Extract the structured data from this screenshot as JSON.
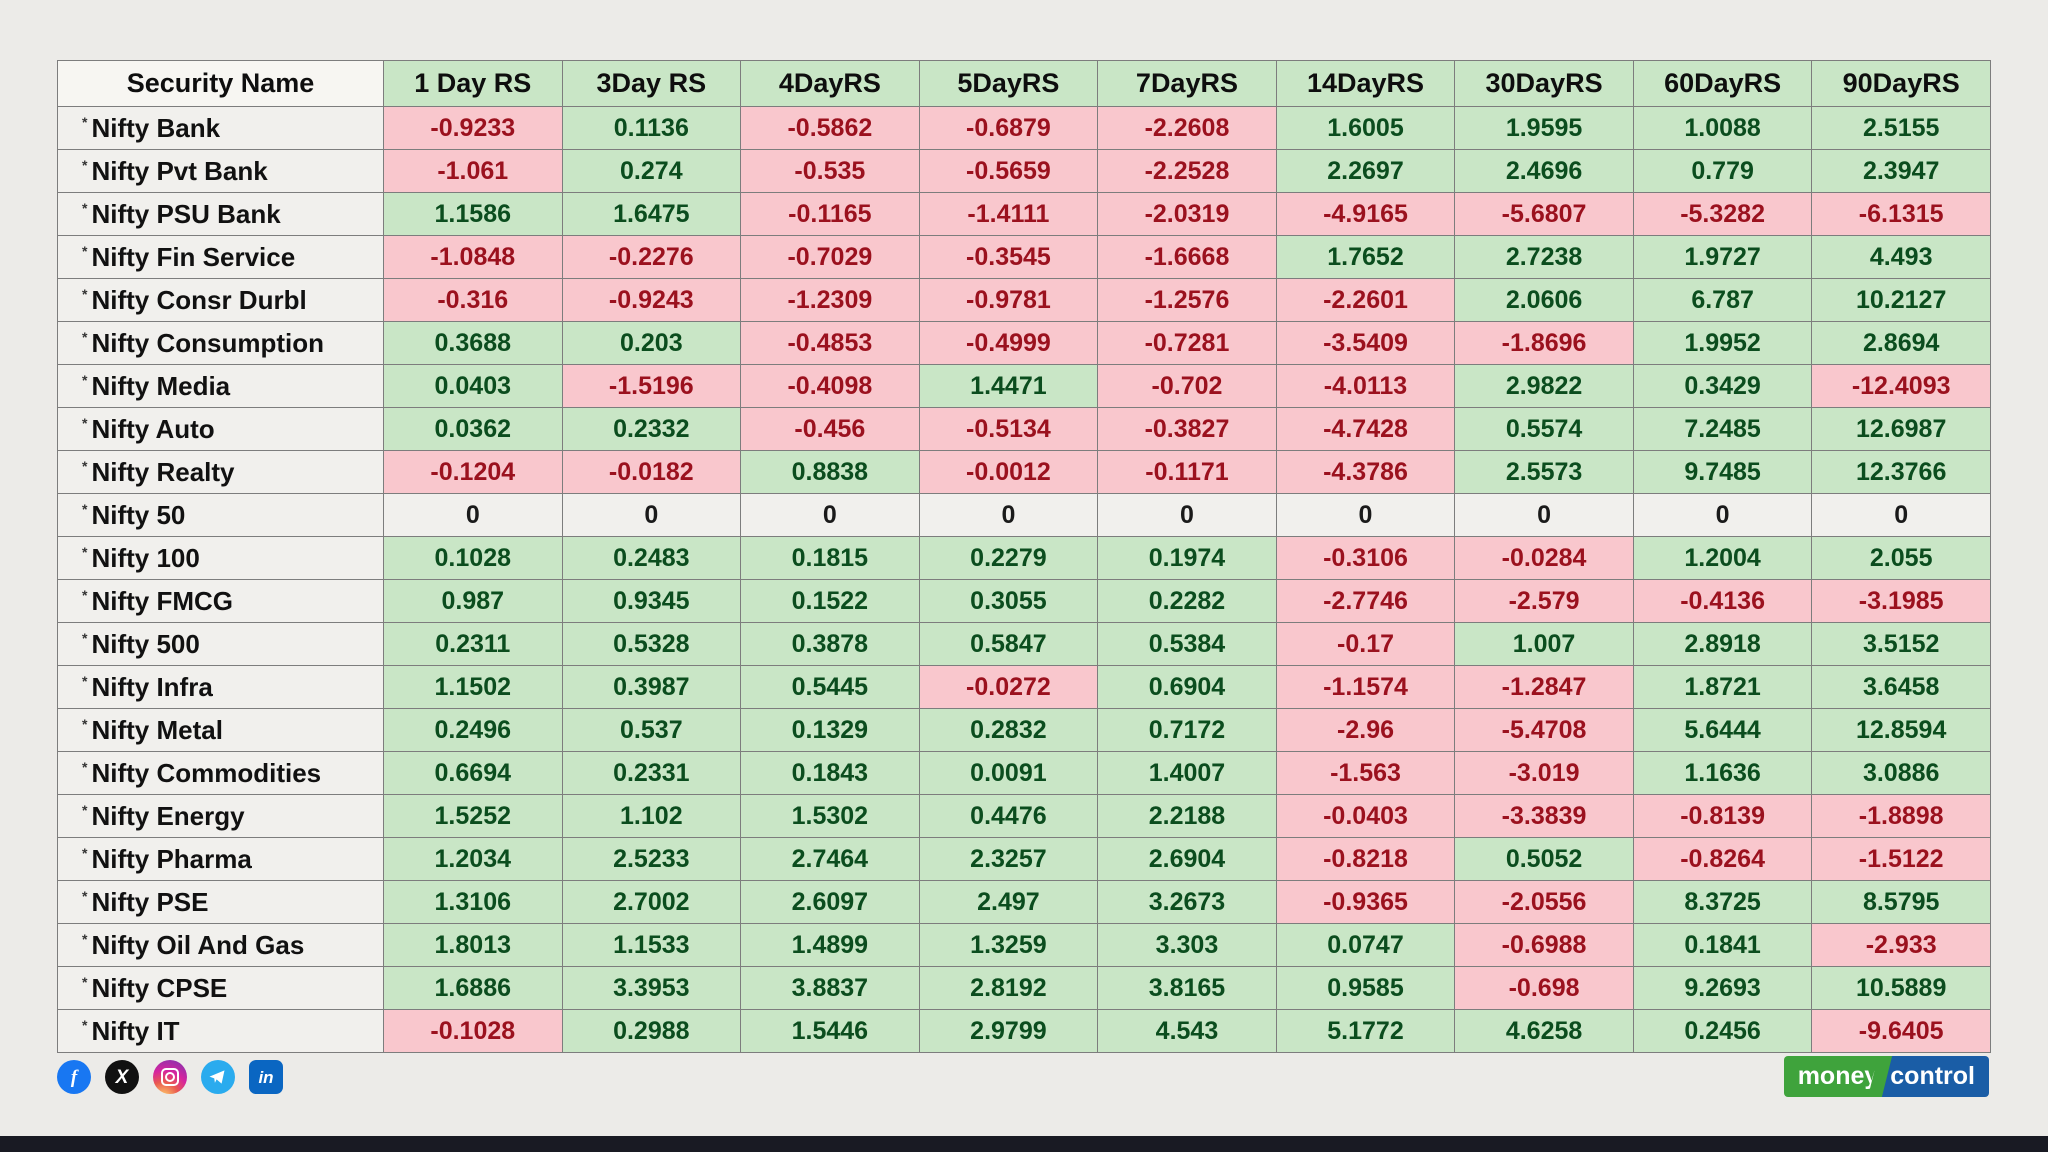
{
  "chart_data": {
    "type": "table",
    "columns": [
      "Security Name",
      "1 Day RS",
      "3Day RS",
      "4DayRS",
      "5DayRS",
      "7DayRS",
      "14DayRS",
      "30DayRS",
      "60DayRS",
      "90DayRS"
    ],
    "row_marker": "*",
    "rows": [
      {
        "name": "Nifty Bank",
        "values": [
          "-0.9233",
          "0.1136",
          "-0.5862",
          "-0.6879",
          "-2.2608",
          "1.6005",
          "1.9595",
          "1.0088",
          "2.5155"
        ]
      },
      {
        "name": "Nifty Pvt Bank",
        "values": [
          "-1.061",
          "0.274",
          "-0.535",
          "-0.5659",
          "-2.2528",
          "2.2697",
          "2.4696",
          "0.779",
          "2.3947"
        ]
      },
      {
        "name": "Nifty PSU Bank",
        "values": [
          "1.1586",
          "1.6475",
          "-0.1165",
          "-1.4111",
          "-2.0319",
          "-4.9165",
          "-5.6807",
          "-5.3282",
          "-6.1315"
        ]
      },
      {
        "name": "Nifty Fin Service",
        "values": [
          "-1.0848",
          "-0.2276",
          "-0.7029",
          "-0.3545",
          "-1.6668",
          "1.7652",
          "2.7238",
          "1.9727",
          "4.493"
        ]
      },
      {
        "name": "Nifty Consr Durbl",
        "values": [
          "-0.316",
          "-0.9243",
          "-1.2309",
          "-0.9781",
          "-1.2576",
          "-2.2601",
          "2.0606",
          "6.787",
          "10.2127"
        ]
      },
      {
        "name": "Nifty Consumption",
        "values": [
          "0.3688",
          "0.203",
          "-0.4853",
          "-0.4999",
          "-0.7281",
          "-3.5409",
          "-1.8696",
          "1.9952",
          "2.8694"
        ]
      },
      {
        "name": "Nifty Media",
        "values": [
          "0.0403",
          "-1.5196",
          "-0.4098",
          "1.4471",
          "-0.702",
          "-4.0113",
          "2.9822",
          "0.3429",
          "-12.4093"
        ]
      },
      {
        "name": "Nifty Auto",
        "values": [
          "0.0362",
          "0.2332",
          "-0.456",
          "-0.5134",
          "-0.3827",
          "-4.7428",
          "0.5574",
          "7.2485",
          "12.6987"
        ]
      },
      {
        "name": "Nifty Realty",
        "values": [
          "-0.1204",
          "-0.0182",
          "0.8838",
          "-0.0012",
          "-0.1171",
          "-4.3786",
          "2.5573",
          "9.7485",
          "12.3766"
        ]
      },
      {
        "name": "Nifty 50",
        "values": [
          "0",
          "0",
          "0",
          "0",
          "0",
          "0",
          "0",
          "0",
          "0"
        ]
      },
      {
        "name": "Nifty 100",
        "values": [
          "0.1028",
          "0.2483",
          "0.1815",
          "0.2279",
          "0.1974",
          "-0.3106",
          "-0.0284",
          "1.2004",
          "2.055"
        ]
      },
      {
        "name": "Nifty FMCG",
        "values": [
          "0.987",
          "0.9345",
          "0.1522",
          "0.3055",
          "0.2282",
          "-2.7746",
          "-2.579",
          "-0.4136",
          "-3.1985"
        ]
      },
      {
        "name": "Nifty 500",
        "values": [
          "0.2311",
          "0.5328",
          "0.3878",
          "0.5847",
          "0.5384",
          "-0.17",
          "1.007",
          "2.8918",
          "3.5152"
        ]
      },
      {
        "name": "Nifty Infra",
        "values": [
          "1.1502",
          "0.3987",
          "0.5445",
          "-0.0272",
          "0.6904",
          "-1.1574",
          "-1.2847",
          "1.8721",
          "3.6458"
        ]
      },
      {
        "name": "Nifty Metal",
        "values": [
          "0.2496",
          "0.537",
          "0.1329",
          "0.2832",
          "0.7172",
          "-2.96",
          "-5.4708",
          "5.6444",
          "12.8594"
        ]
      },
      {
        "name": "Nifty Commodities",
        "values": [
          "0.6694",
          "0.2331",
          "0.1843",
          "0.0091",
          "1.4007",
          "-1.563",
          "-3.019",
          "1.1636",
          "3.0886"
        ]
      },
      {
        "name": "Nifty Energy",
        "values": [
          "1.5252",
          "1.102",
          "1.5302",
          "0.4476",
          "2.2188",
          "-0.0403",
          "-3.3839",
          "-0.8139",
          "-1.8898"
        ]
      },
      {
        "name": "Nifty Pharma",
        "values": [
          "1.2034",
          "2.5233",
          "2.7464",
          "2.3257",
          "2.6904",
          "-0.8218",
          "0.5052",
          "-0.8264",
          "-1.5122"
        ]
      },
      {
        "name": "Nifty PSE",
        "values": [
          "1.3106",
          "2.7002",
          "2.6097",
          "2.497",
          "3.2673",
          "-0.9365",
          "-2.0556",
          "8.3725",
          "8.5795"
        ]
      },
      {
        "name": "Nifty Oil And Gas",
        "values": [
          "1.8013",
          "1.1533",
          "1.4899",
          "1.3259",
          "3.303",
          "0.0747",
          "-0.6988",
          "0.1841",
          "-2.933"
        ]
      },
      {
        "name": "Nifty CPSE",
        "values": [
          "1.6886",
          "3.3953",
          "3.8837",
          "2.8192",
          "3.8165",
          "0.9585",
          "-0.698",
          "9.2693",
          "10.5889"
        ]
      },
      {
        "name": "Nifty IT",
        "values": [
          "-0.1028",
          "0.2988",
          "1.5446",
          "2.9799",
          "4.543",
          "5.1772",
          "4.6258",
          "0.2456",
          "-9.6405"
        ]
      }
    ]
  },
  "footer": {
    "social": [
      {
        "name": "facebook",
        "glyph": "f"
      },
      {
        "name": "x",
        "glyph": "X"
      },
      {
        "name": "instagram",
        "glyph": ""
      },
      {
        "name": "telegram",
        "glyph": ""
      },
      {
        "name": "linkedin",
        "glyph": "in"
      }
    ],
    "logo": {
      "money": "money",
      "control": "control"
    }
  },
  "colors": {
    "page-bg": "#ecebe8",
    "positive-bg": "#c9e6c6",
    "negative-bg": "#f9c7cd",
    "neutral-bg": "#f1f0ed",
    "header-bg": "#c9e6c6",
    "positive-text": "#0b4d1e",
    "negative-text": "#9b111e",
    "border": "#7d7d7d",
    "facebook": "#1877f2",
    "x": "#111111",
    "telegram": "#2aabee",
    "linkedin": "#0a66c2",
    "logo-green": "#3fa33c",
    "logo-blue": "#1a5da6",
    "bottom-bar": "#191a23"
  }
}
